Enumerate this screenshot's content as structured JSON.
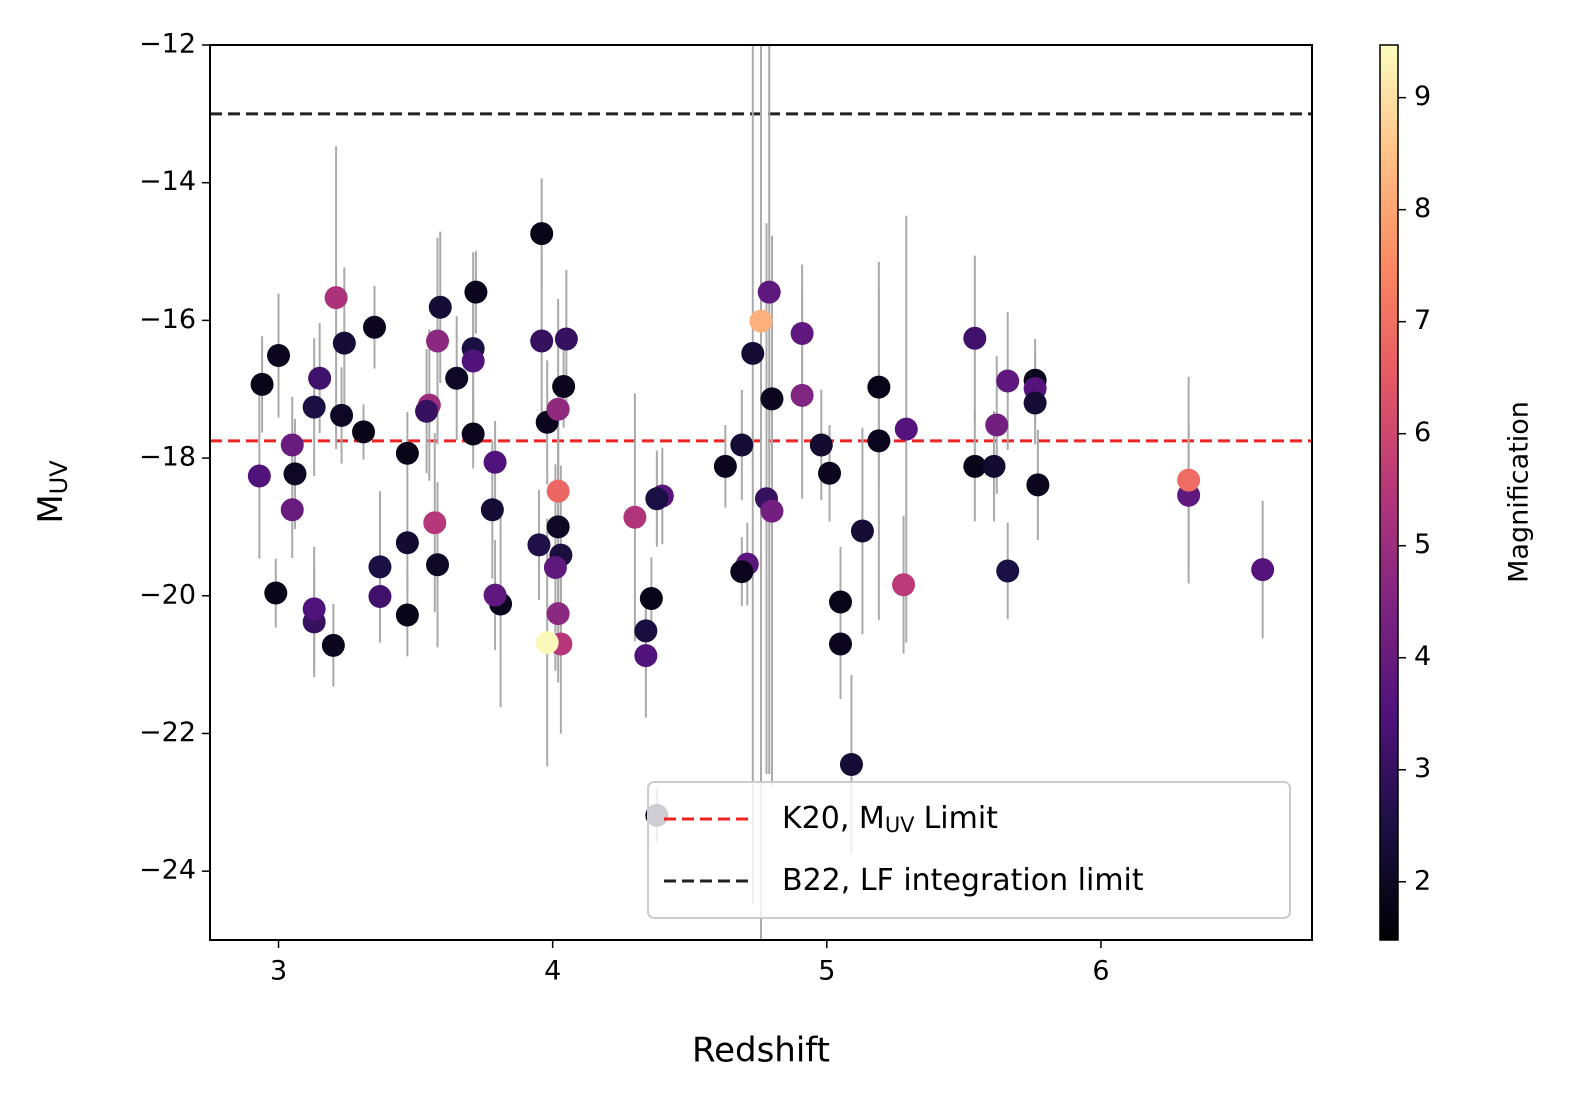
{
  "chart_data": {
    "type": "scatter",
    "xlabel": "Redshift",
    "ylabel_parts": [
      "M",
      "UV"
    ],
    "xlim": [
      2.75,
      6.77
    ],
    "ylim": [
      -25,
      -12
    ],
    "xticks": [
      3,
      4,
      5,
      6
    ],
    "yticks": [
      {
        "value": -12,
        "label": "−12"
      },
      {
        "value": -14,
        "label": "−14"
      },
      {
        "value": -16,
        "label": "−16"
      },
      {
        "value": -18,
        "label": "−18"
      },
      {
        "value": -20,
        "label": "−20"
      },
      {
        "value": -22,
        "label": "−22"
      },
      {
        "value": -24,
        "label": "−24"
      }
    ],
    "errorbar_color": "#aaaaaa",
    "colormap": "magma",
    "colorbar": {
      "label": "Magnification",
      "clim": [
        1.48,
        9.47
      ],
      "ticks": [
        2,
        3,
        4,
        5,
        6,
        7,
        8,
        9
      ]
    },
    "points": [
      {
        "x": 2.94,
        "y": -16.93,
        "err": 0.7,
        "mag": 1.8
      },
      {
        "x": 3.0,
        "y": -16.51,
        "err": 0.9,
        "mag": 1.9
      },
      {
        "x": 2.93,
        "y": -18.26,
        "err": 1.2,
        "mag": 3.5
      },
      {
        "x": 3.06,
        "y": -18.23,
        "err": 0.8,
        "mag": 2.0
      },
      {
        "x": 3.05,
        "y": -17.81,
        "err": 0.7,
        "mag": 4.0
      },
      {
        "x": 3.05,
        "y": -18.75,
        "err": 0.7,
        "mag": 4.0
      },
      {
        "x": 2.99,
        "y": -19.96,
        "err": 0.5,
        "mag": 1.8
      },
      {
        "x": 3.15,
        "y": -16.84,
        "err": 0.8,
        "mag": 3.2
      },
      {
        "x": 3.13,
        "y": -17.26,
        "err": 1.0,
        "mag": 2.5
      },
      {
        "x": 3.21,
        "y": -15.67,
        "err": 2.2,
        "mag": 5.3
      },
      {
        "x": 3.24,
        "y": -16.33,
        "err": 1.1,
        "mag": 2.3
      },
      {
        "x": 3.23,
        "y": -17.38,
        "err": 0.7,
        "mag": 2.0
      },
      {
        "x": 3.31,
        "y": -17.62,
        "err": 0.4,
        "mag": 1.8
      },
      {
        "x": 3.35,
        "y": -16.1,
        "err": 0.6,
        "mag": 1.9
      },
      {
        "x": 3.13,
        "y": -20.38,
        "err": 0.8,
        "mag": 3.0
      },
      {
        "x": 3.13,
        "y": -20.19,
        "err": 0.9,
        "mag": 3.5
      },
      {
        "x": 3.2,
        "y": -20.72,
        "err": 0.6,
        "mag": 1.9
      },
      {
        "x": 3.37,
        "y": -19.58,
        "err": 1.1,
        "mag": 2.5
      },
      {
        "x": 3.37,
        "y": -20.01,
        "err": 0.4,
        "mag": 3.2
      },
      {
        "x": 3.47,
        "y": -17.93,
        "err": 0.6,
        "mag": 1.8
      },
      {
        "x": 3.47,
        "y": -19.23,
        "err": 0.7,
        "mag": 2.2
      },
      {
        "x": 3.47,
        "y": -20.28,
        "err": 0.6,
        "mag": 1.8
      },
      {
        "x": 3.55,
        "y": -17.23,
        "err": 1.1,
        "mag": 5.0
      },
      {
        "x": 3.54,
        "y": -17.32,
        "err": 0.9,
        "mag": 3.0
      },
      {
        "x": 3.58,
        "y": -16.3,
        "err": 1.5,
        "mag": 4.7
      },
      {
        "x": 3.57,
        "y": -18.94,
        "err": 1.3,
        "mag": 5.5
      },
      {
        "x": 3.58,
        "y": -19.55,
        "err": 1.2,
        "mag": 2.0
      },
      {
        "x": 3.59,
        "y": -15.81,
        "err": 1.1,
        "mag": 2.3
      },
      {
        "x": 3.65,
        "y": -16.84,
        "err": 0.9,
        "mag": 2.0
      },
      {
        "x": 3.71,
        "y": -16.41,
        "err": 1.4,
        "mag": 2.5
      },
      {
        "x": 3.71,
        "y": -16.59,
        "err": 1.2,
        "mag": 3.5
      },
      {
        "x": 3.72,
        "y": -15.59,
        "err": 0.6,
        "mag": 1.9
      },
      {
        "x": 3.71,
        "y": -17.65,
        "err": 0.5,
        "mag": 1.9
      },
      {
        "x": 3.79,
        "y": -18.06,
        "err": 0.6,
        "mag": 3.5
      },
      {
        "x": 3.78,
        "y": -18.75,
        "err": 1.0,
        "mag": 2.3
      },
      {
        "x": 3.81,
        "y": -20.12,
        "err": 1.5,
        "mag": 1.9
      },
      {
        "x": 3.79,
        "y": -19.99,
        "err": 0.8,
        "mag": 3.8
      },
      {
        "x": 3.96,
        "y": -14.74,
        "err": 0.8,
        "mag": 1.8
      },
      {
        "x": 3.96,
        "y": -16.3,
        "err": 1.3,
        "mag": 3.0
      },
      {
        "x": 3.98,
        "y": -17.48,
        "err": 0.9,
        "mag": 1.9
      },
      {
        "x": 3.95,
        "y": -19.26,
        "err": 0.8,
        "mag": 2.6
      },
      {
        "x": 4.02,
        "y": -17.29,
        "err": 1.6,
        "mag": 4.8
      },
      {
        "x": 4.02,
        "y": -18.48,
        "err": 1.3,
        "mag": 6.8
      },
      {
        "x": 4.02,
        "y": -19.0,
        "err": 1.5,
        "mag": 2.0
      },
      {
        "x": 4.03,
        "y": -19.41,
        "err": 1.3,
        "mag": 2.4
      },
      {
        "x": 4.01,
        "y": -19.59,
        "err": 1.5,
        "mag": 3.8
      },
      {
        "x": 4.02,
        "y": -20.26,
        "err": 1.0,
        "mag": 4.7
      },
      {
        "x": 4.03,
        "y": -20.7,
        "err": 1.3,
        "mag": 5.5
      },
      {
        "x": 3.98,
        "y": -20.68,
        "err": 1.8,
        "mag": 9.4
      },
      {
        "x": 4.05,
        "y": -16.27,
        "err": 1.0,
        "mag": 3.0
      },
      {
        "x": 4.04,
        "y": -16.96,
        "err": 0.6,
        "mag": 1.9
      },
      {
        "x": 4.3,
        "y": -18.86,
        "err": 1.8,
        "mag": 5.4
      },
      {
        "x": 4.4,
        "y": -18.55,
        "err": 0.7,
        "mag": 3.7
      },
      {
        "x": 4.38,
        "y": -18.59,
        "err": 0.7,
        "mag": 2.5
      },
      {
        "x": 4.36,
        "y": -20.04,
        "err": 0.6,
        "mag": 1.8
      },
      {
        "x": 4.34,
        "y": -20.51,
        "err": 0.6,
        "mag": 2.4
      },
      {
        "x": 4.34,
        "y": -20.87,
        "err": 0.9,
        "mag": 3.5
      },
      {
        "x": 4.38,
        "y": -23.19,
        "err": 0.4,
        "mag": 2.0
      },
      {
        "x": 4.63,
        "y": -18.12,
        "err": 0.6,
        "mag": 1.9
      },
      {
        "x": 4.69,
        "y": -17.81,
        "err": 0.8,
        "mag": 2.3
      },
      {
        "x": 4.71,
        "y": -19.54,
        "err": 0.6,
        "mag": 3.7
      },
      {
        "x": 4.69,
        "y": -19.65,
        "err": 0.5,
        "mag": 1.9
      },
      {
        "x": 4.73,
        "y": -16.48,
        "err": 8.0,
        "mag": 2.3
      },
      {
        "x": 4.76,
        "y": -16.01,
        "err": 10.0,
        "mag": 8.2
      },
      {
        "x": 4.79,
        "y": -15.59,
        "err": 7.0,
        "mag": 3.8
      },
      {
        "x": 4.78,
        "y": -18.59,
        "err": 4.0,
        "mag": 3.0
      },
      {
        "x": 4.8,
        "y": -18.77,
        "err": 4.0,
        "mag": 4.2
      },
      {
        "x": 4.8,
        "y": -17.14,
        "err": 1.0,
        "mag": 1.9
      },
      {
        "x": 4.91,
        "y": -16.19,
        "err": 1.0,
        "mag": 3.8
      },
      {
        "x": 4.91,
        "y": -17.09,
        "err": 1.5,
        "mag": 4.5
      },
      {
        "x": 4.98,
        "y": -17.81,
        "err": 0.8,
        "mag": 2.2
      },
      {
        "x": 5.01,
        "y": -18.22,
        "err": 0.7,
        "mag": 1.9
      },
      {
        "x": 5.05,
        "y": -20.09,
        "err": 0.8,
        "mag": 1.8
      },
      {
        "x": 5.05,
        "y": -20.7,
        "err": 0.8,
        "mag": 1.9
      },
      {
        "x": 5.09,
        "y": -22.45,
        "err": 1.3,
        "mag": 2.3
      },
      {
        "x": 5.13,
        "y": -19.06,
        "err": 1.5,
        "mag": 2.3
      },
      {
        "x": 5.19,
        "y": -16.97,
        "err": 1.4,
        "mag": 1.8
      },
      {
        "x": 5.19,
        "y": -17.75,
        "err": 2.6,
        "mag": 1.9
      },
      {
        "x": 5.29,
        "y": -17.58,
        "err": 3.1,
        "mag": 3.6
      },
      {
        "x": 5.28,
        "y": -19.84,
        "err": 1.0,
        "mag": 5.6
      },
      {
        "x": 5.54,
        "y": -16.26,
        "err": 1.2,
        "mag": 3.2
      },
      {
        "x": 5.54,
        "y": -18.12,
        "err": 0.8,
        "mag": 1.8
      },
      {
        "x": 5.61,
        "y": -18.12,
        "err": 0.8,
        "mag": 2.2
      },
      {
        "x": 5.62,
        "y": -17.52,
        "err": 1.0,
        "mag": 4.2
      },
      {
        "x": 5.66,
        "y": -16.88,
        "err": 1.0,
        "mag": 3.8
      },
      {
        "x": 5.66,
        "y": -19.64,
        "err": 0.7,
        "mag": 2.5
      },
      {
        "x": 5.76,
        "y": -16.87,
        "err": 0.6,
        "mag": 1.9
      },
      {
        "x": 5.76,
        "y": -16.99,
        "err": 0.5,
        "mag": 3.6
      },
      {
        "x": 5.76,
        "y": -17.2,
        "err": 0.6,
        "mag": 2.3
      },
      {
        "x": 5.77,
        "y": -18.39,
        "err": 0.8,
        "mag": 1.9
      },
      {
        "x": 6.32,
        "y": -18.54,
        "err": 1.0,
        "mag": 3.8
      },
      {
        "x": 6.32,
        "y": -18.32,
        "err": 1.5,
        "mag": 6.9
      },
      {
        "x": 6.59,
        "y": -19.62,
        "err": 1.0,
        "mag": 3.6
      }
    ],
    "hlines": [
      {
        "name_parts": [
          "K20, M",
          "UV",
          "Limit"
        ],
        "y": -17.75,
        "color": "#ee2222"
      },
      {
        "name_parts": [
          "B22, LF integration limit"
        ],
        "y": -13,
        "color": "#222222"
      }
    ],
    "legend": "lower right"
  }
}
